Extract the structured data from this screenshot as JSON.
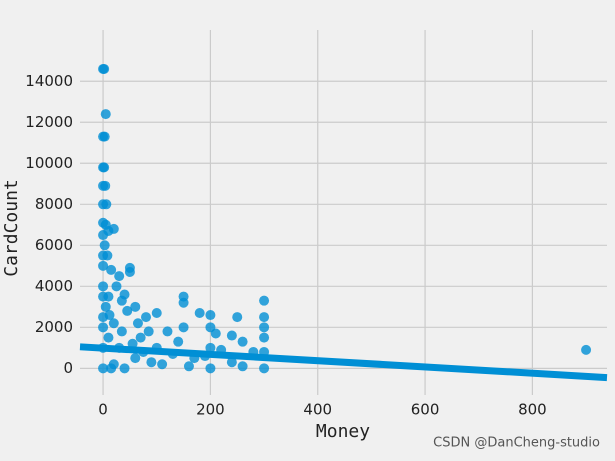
{
  "chart_data": {
    "type": "scatter",
    "xlabel": "Money",
    "ylabel": "CardCount",
    "watermark": "CSDN @DanCheng-studio",
    "color": "#008fd5",
    "grid": true,
    "xlim": [
      -43,
      939
    ],
    "ylim": [
      -1300,
      16500
    ],
    "xticks": [
      0,
      200,
      400,
      600,
      800
    ],
    "yticks": [
      0,
      2000,
      4000,
      6000,
      8000,
      10000,
      12000,
      14000
    ],
    "x": [
      0,
      2,
      5,
      0,
      3,
      0,
      2,
      0,
      4,
      0,
      6,
      0,
      5,
      10,
      0,
      3,
      20,
      8,
      0,
      15,
      30,
      50,
      50,
      25,
      40,
      10,
      60,
      0,
      20,
      45,
      80,
      100,
      150,
      150,
      180,
      200,
      200,
      150,
      120,
      250,
      240,
      300,
      300,
      300,
      300,
      300,
      300,
      260,
      280,
      200,
      200,
      170,
      130,
      100,
      90,
      70,
      60,
      30,
      20,
      10,
      5,
      0,
      0,
      0,
      12,
      35,
      55,
      75,
      110,
      160,
      190,
      220,
      240,
      260,
      900,
      0,
      0,
      0,
      15,
      40,
      35,
      65,
      85,
      140,
      210
    ],
    "y": [
      14600,
      14600,
      12400,
      11300,
      11300,
      9800,
      9800,
      8900,
      8900,
      8000,
      8000,
      7100,
      7000,
      6700,
      6500,
      6000,
      6800,
      5500,
      5000,
      4800,
      4500,
      4900,
      4700,
      4000,
      3600,
      3500,
      3000,
      2500,
      2200,
      2800,
      2500,
      2700,
      3500,
      3200,
      2700,
      2600,
      2000,
      2000,
      1800,
      2500,
      1600,
      3300,
      2500,
      2000,
      1500,
      800,
      0,
      1300,
      800,
      1000,
      0,
      500,
      700,
      1000,
      300,
      1500,
      500,
      1000,
      200,
      1500,
      3000,
      0,
      1000,
      4000,
      2600,
      1800,
      1200,
      800,
      200,
      100,
      600,
      900,
      300,
      100,
      900,
      3500,
      5500,
      2000,
      0,
      0,
      3300,
      2200,
      1800,
      1300,
      1700
    ],
    "regression": {
      "x": [
        -43,
        939
      ],
      "y": [
        1050,
        -450
      ]
    }
  }
}
